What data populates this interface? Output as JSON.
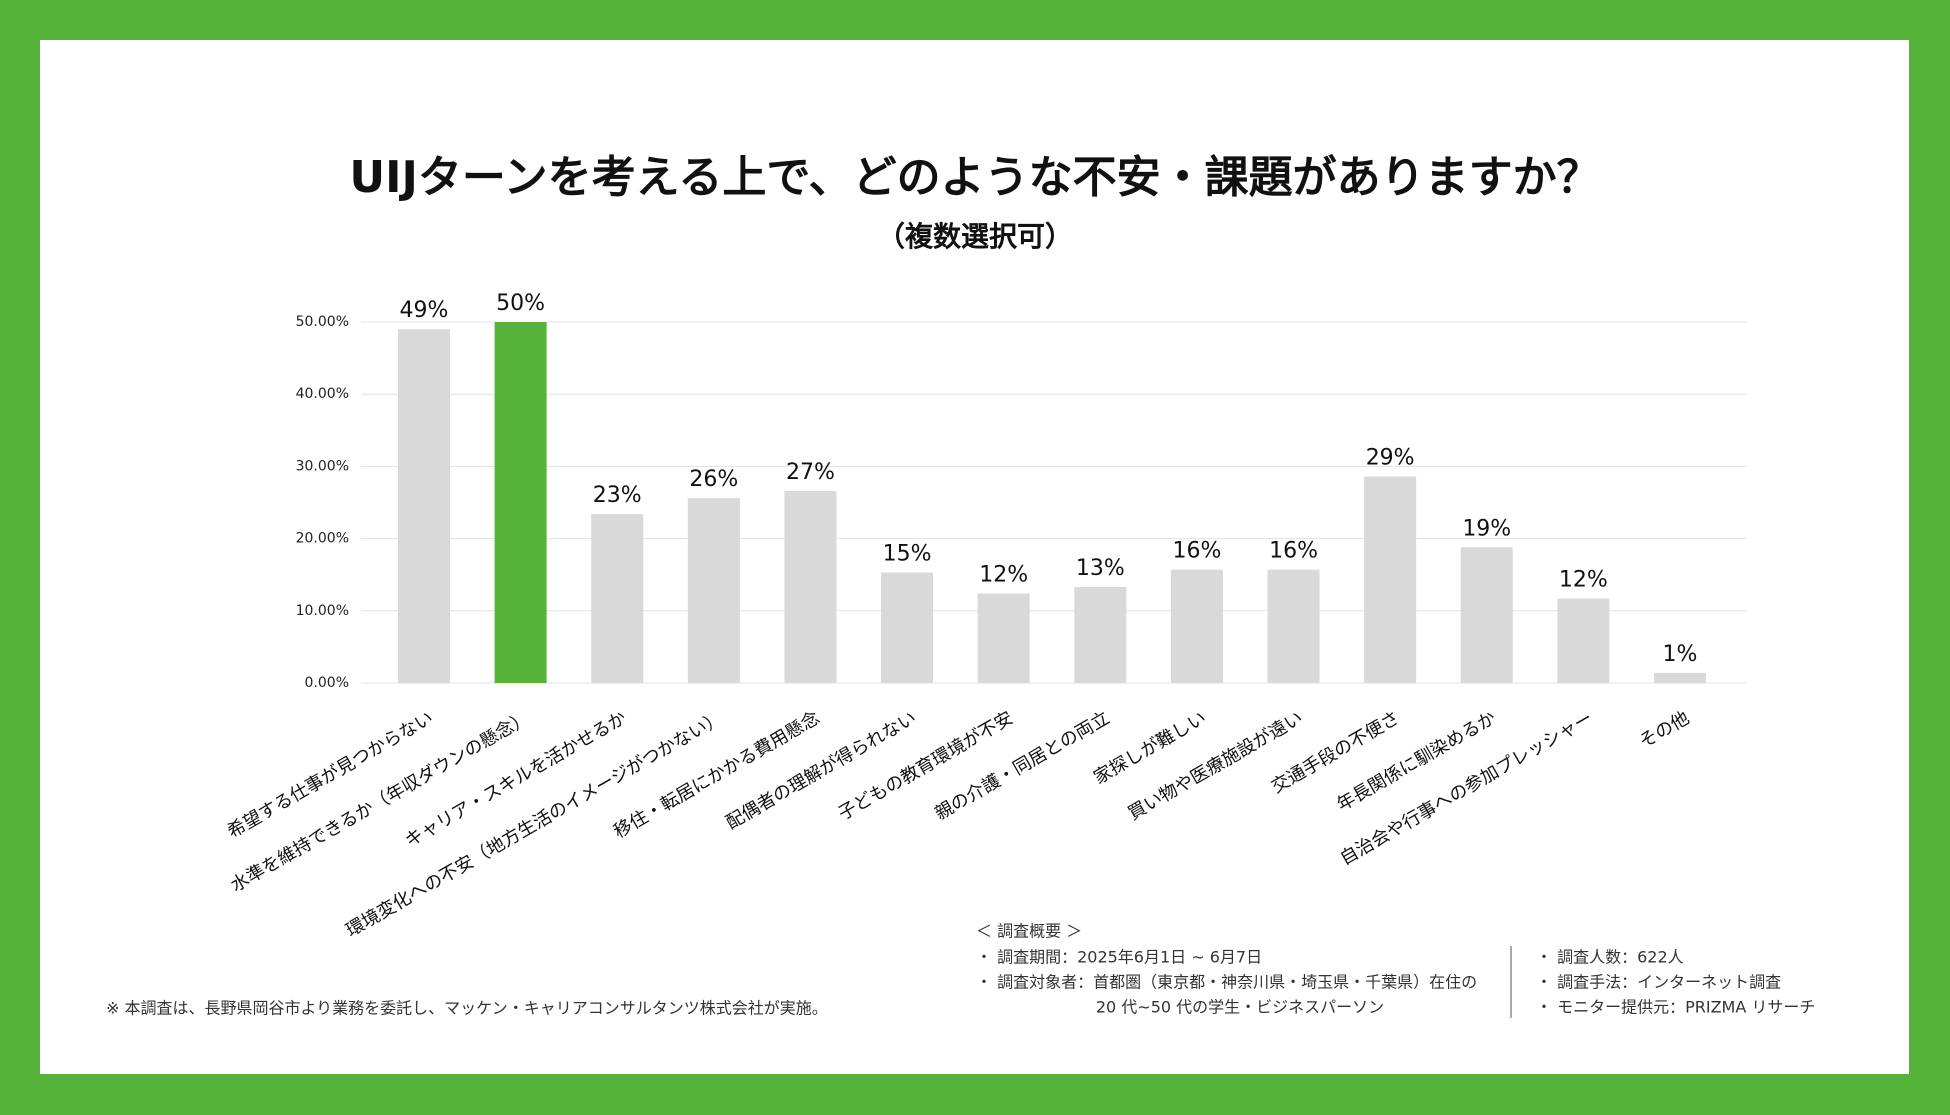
{
  "chart_data": {
    "type": "bar",
    "title": "UIJターンを考える上で、どのような不安・課題がありますか？",
    "subtitle": "（複数選択可）",
    "categories": [
      "希望する仕事が見つからない",
      "水準を維持できるか（年収ダウンの懸念）",
      "キャリア・スキルを活かせるか",
      "環境変化への不安（地方生活のイメージがつかない）",
      "移住・転居にかかる費用懸念",
      "配偶者の理解が得られない",
      "子どもの教育環境が不安",
      "親の介護・同居との両立",
      "家探しが難しい",
      "買い物や医療施設が遠い",
      "交通手段の不便さ",
      "年長関係に馴染めるか",
      "自治会や行事への参加プレッシャー",
      "その他"
    ],
    "values": [
      49,
      50,
      23.4,
      25.6,
      26.6,
      15.3,
      12.4,
      13.3,
      15.7,
      15.7,
      28.6,
      18.8,
      11.7,
      1.4
    ],
    "value_labels": [
      "49%",
      "50%",
      "23%",
      "26%",
      "27%",
      "15%",
      "12%",
      "13%",
      "16%",
      "16%",
      "29%",
      "19%",
      "12%",
      "1%"
    ],
    "colors": [
      "#d9d9d9",
      "#56b33a",
      "#d9d9d9",
      "#d9d9d9",
      "#d9d9d9",
      "#d9d9d9",
      "#d9d9d9",
      "#d9d9d9",
      "#d9d9d9",
      "#d9d9d9",
      "#d9d9d9",
      "#d9d9d9",
      "#d9d9d9",
      "#d9d9d9"
    ],
    "ylim": [
      0,
      50
    ],
    "yticks": [
      {
        "value": 0,
        "label": "0.00%"
      },
      {
        "value": 10,
        "label": "10.00%"
      },
      {
        "value": 20,
        "label": "20.00%"
      },
      {
        "value": 30,
        "label": "30.00%"
      },
      {
        "value": 40,
        "label": "40.00%"
      },
      {
        "value": 50,
        "label": "50.00%"
      }
    ],
    "grid": true
  },
  "notes": {
    "disclaimer": "※ 本調査は、長野県岡谷市より業務を委託し、マッケン・キャリアコンサルタンツ株式会社が実施。",
    "survey_heading": "＜ 調査概要 ＞",
    "survey_left": [
      "・ 調査期間：2025年6月1日 ~ 6月7日",
      "・ 調査対象者：首都圏（東京都・神奈川県・埼玉県・千葉県）在住の",
      "20 代~50 代の学生・ビジネスパーソン"
    ],
    "survey_right": [
      "・ 調査人数：622人",
      "・ 調査手法：インターネット調査",
      "・ モニター提供元：PRIZMA リサーチ"
    ]
  }
}
